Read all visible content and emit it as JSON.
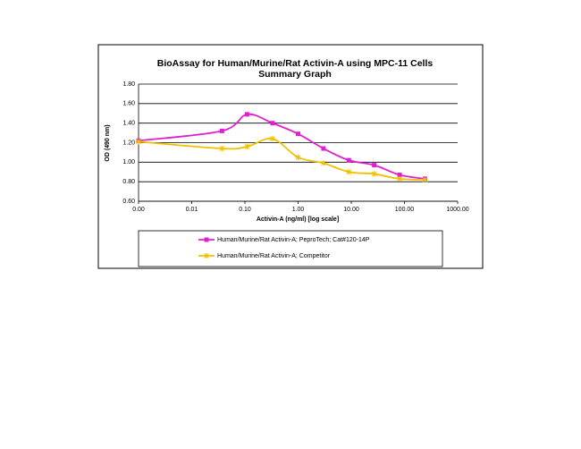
{
  "chart_data": {
    "type": "line",
    "title": "BioAssay for Human/Murine/Rat Activin-A using MPC-11 Cells",
    "subtitle": "Summary Graph",
    "x_label": "Activin-A (ng/ml) [log scale]",
    "y_label": "OD (490 nm)",
    "x": [
      0.001,
      0.037,
      0.11,
      0.33,
      1,
      3,
      9,
      27,
      81,
      243
    ],
    "series": [
      {
        "name": "Human/Murine/Rat Activin-A; PeproTech; Cat#120-14P",
        "color": "#e020d0",
        "marker": "square",
        "values": [
          1.22,
          1.32,
          1.49,
          1.4,
          1.29,
          1.14,
          1.02,
          0.97,
          0.87,
          0.83
        ]
      },
      {
        "name": "Human/Murine/Rat Activin-A; Competitor",
        "color": "#f0c000",
        "marker": "asterisk",
        "values": [
          1.21,
          1.14,
          1.16,
          1.24,
          1.05,
          0.99,
          0.9,
          0.88,
          0.83,
          0.82
        ]
      }
    ],
    "x_log": true,
    "xlim": [
      0.001,
      1000
    ],
    "xticks": [
      {
        "value": 0.001,
        "label": "0.00"
      },
      {
        "value": 0.01,
        "label": "0.01"
      },
      {
        "value": 0.1,
        "label": "0.10"
      },
      {
        "value": 1,
        "label": "1.00"
      },
      {
        "value": 10,
        "label": "10.00"
      },
      {
        "value": 100,
        "label": "100.00"
      },
      {
        "value": 1000,
        "label": "1000.00"
      }
    ],
    "ylim": [
      0.6,
      1.8
    ],
    "yticks": [
      {
        "value": 0.6,
        "label": "0.60"
      },
      {
        "value": 0.8,
        "label": "0.80"
      },
      {
        "value": 1.0,
        "label": "1.00"
      },
      {
        "value": 1.2,
        "label": "1.20"
      },
      {
        "value": 1.4,
        "label": "1.40"
      },
      {
        "value": 1.6,
        "label": "1.60"
      },
      {
        "value": 1.8,
        "label": "1.80"
      }
    ],
    "grid": true,
    "legend": "bottom"
  }
}
